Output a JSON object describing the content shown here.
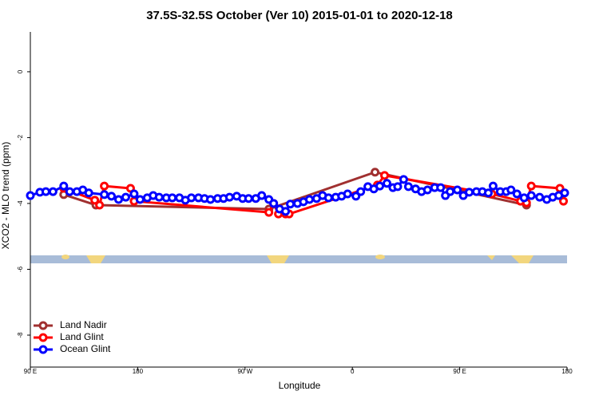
{
  "chart_data": {
    "type": "line",
    "title": "37.5S-32.5S October (Ver 10)   2015-01-01 to 2020-12-18",
    "xlabel": "Longitude",
    "ylabel": "XCO2 - MLO trend (ppm)",
    "xlim": [
      90,
      540
    ],
    "ylim": [
      -8.97,
      1.21
    ],
    "xticks": [
      {
        "value": 90,
        "label": "90 E"
      },
      {
        "value": 180,
        "label": "180"
      },
      {
        "value": 270,
        "label": "90 W"
      },
      {
        "value": 360,
        "label": "0"
      },
      {
        "value": 450,
        "label": "90 E"
      },
      {
        "value": 540,
        "label": "180"
      }
    ],
    "yticks": [
      0,
      -2,
      -4,
      -6,
      -8
    ],
    "legend": "bottom-left",
    "series": [
      {
        "name": "Land Nadir",
        "color": "#a03030",
        "x": [
          118,
          145,
          290,
          379,
          506
        ],
        "values": [
          -3.73,
          -4.05,
          -4.17,
          -3.05,
          -4.05
        ]
      },
      {
        "name": "Land Glint",
        "color": "#ff0000",
        "x": [
          118,
          144,
          148,
          152,
          174,
          177,
          290,
          294,
          298,
          304,
          307,
          381,
          387,
          477,
          501,
          506,
          510,
          534,
          537
        ],
        "values": [
          -3.54,
          -3.9,
          -4.05,
          -3.47,
          -3.54,
          -3.93,
          -4.27,
          -4.0,
          -4.32,
          -4.32,
          -4.32,
          -3.44,
          -3.15,
          -3.71,
          -3.93,
          -3.98,
          -3.47,
          -3.54,
          -3.93
        ]
      },
      {
        "name": "Ocean Glint",
        "color": "#0000ff",
        "x": [
          90,
          98,
          103,
          109,
          118,
          123,
          129,
          134,
          139,
          152,
          158,
          164,
          170,
          177,
          182,
          188,
          193,
          198,
          204,
          209,
          215,
          220,
          225,
          231,
          236,
          241,
          247,
          252,
          257,
          263,
          268,
          273,
          279,
          284,
          290,
          294,
          299,
          304,
          308,
          314,
          319,
          324,
          330,
          335,
          340,
          346,
          351,
          356,
          363,
          367,
          373,
          378,
          383,
          389,
          394,
          398,
          403,
          407,
          413,
          418,
          423,
          429,
          434,
          438,
          442,
          448,
          453,
          458,
          464,
          469,
          474,
          478,
          484,
          489,
          493,
          498,
          504,
          510,
          517,
          523,
          528,
          533,
          538
        ],
        "values": [
          -3.76,
          -3.66,
          -3.64,
          -3.64,
          -3.47,
          -3.64,
          -3.64,
          -3.59,
          -3.68,
          -3.73,
          -3.78,
          -3.88,
          -3.81,
          -3.71,
          -3.88,
          -3.83,
          -3.76,
          -3.81,
          -3.83,
          -3.83,
          -3.83,
          -3.9,
          -3.83,
          -3.83,
          -3.85,
          -3.88,
          -3.85,
          -3.85,
          -3.81,
          -3.78,
          -3.85,
          -3.85,
          -3.85,
          -3.76,
          -3.88,
          -4.0,
          -4.17,
          -4.24,
          -4.02,
          -4.0,
          -3.95,
          -3.88,
          -3.85,
          -3.76,
          -3.83,
          -3.81,
          -3.78,
          -3.71,
          -3.78,
          -3.64,
          -3.49,
          -3.56,
          -3.47,
          -3.39,
          -3.52,
          -3.49,
          -3.27,
          -3.49,
          -3.56,
          -3.64,
          -3.59,
          -3.52,
          -3.52,
          -3.76,
          -3.64,
          -3.59,
          -3.76,
          -3.66,
          -3.64,
          -3.64,
          -3.68,
          -3.47,
          -3.64,
          -3.64,
          -3.59,
          -3.71,
          -3.83,
          -3.76,
          -3.81,
          -3.88,
          -3.81,
          -3.76,
          -3.68
        ]
      }
    ]
  }
}
